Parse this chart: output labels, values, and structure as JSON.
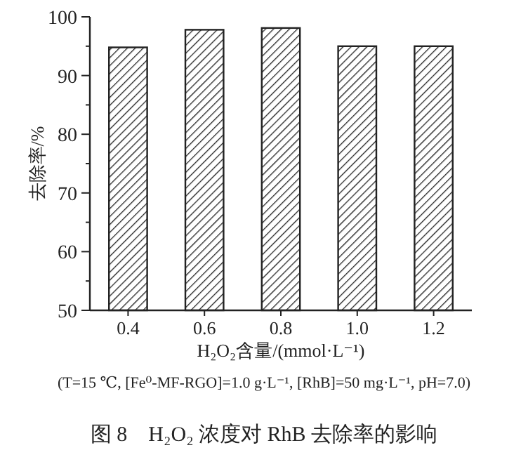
{
  "chart_data": {
    "type": "bar",
    "title": "图 8　H₂O₂ 浓度对 RhB 去除率的影响",
    "xlabel": "H₂O₂含量/(mmol·L⁻¹)",
    "ylabel": "去除率/%",
    "annotations": [
      "(T=15 ℃, [Fe⁰-MF-RGO]=1.0 g·L⁻¹, [RhB]=50 mg·L⁻¹, pH=7.0)"
    ],
    "categories": [
      "0.4",
      "0.6",
      "0.8",
      "1.0",
      "1.2"
    ],
    "values": [
      94.8,
      97.8,
      98.1,
      95.0,
      95.0
    ],
    "color": "#222222",
    "ylim": [
      50,
      100
    ],
    "yticks": [
      50,
      {
        "value": 55,
        "label": null
      },
      60,
      {
        "value": 65,
        "label": null
      },
      70,
      {
        "value": 75,
        "label": null
      },
      80,
      {
        "value": 85,
        "label": null
      },
      90,
      {
        "value": 95,
        "label": null
      },
      100
    ],
    "grid": false
  }
}
